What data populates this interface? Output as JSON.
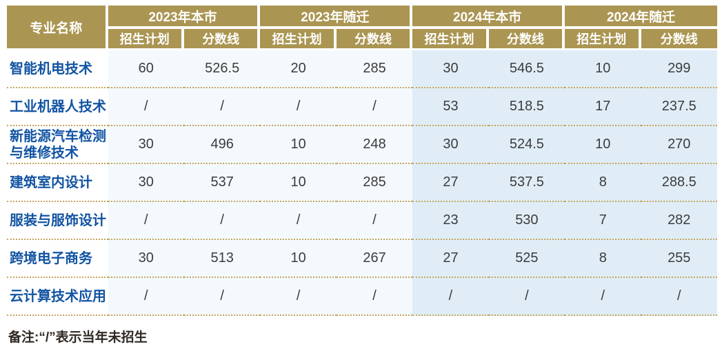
{
  "colors": {
    "header_gold": "#AB9552",
    "major_label_blue": "#1254A3",
    "bg_2023_columns": "#F4F9FD",
    "bg_2024_columns": "#E0EDF7",
    "dotted_separator": "#C5A55C",
    "value_text": "#3C3C3C",
    "header_text": "#FFFFFF"
  },
  "table": {
    "header": {
      "major_label": "专业名称",
      "groups": [
        {
          "label": "2023年本市",
          "cols": [
            "招生计划",
            "分数线"
          ]
        },
        {
          "label": "2023年随迁",
          "cols": [
            "招生计划",
            "分数线"
          ]
        },
        {
          "label": "2024年本市",
          "cols": [
            "招生计划",
            "分数线"
          ]
        },
        {
          "label": "2024年随迁",
          "cols": [
            "招生计划",
            "分数线"
          ]
        }
      ]
    },
    "rows": [
      {
        "major": "智能机电技术",
        "values": [
          "60",
          "526.5",
          "20",
          "285",
          "30",
          "546.5",
          "10",
          "299"
        ]
      },
      {
        "major": "工业机器人技术",
        "values": [
          "/",
          "/",
          "/",
          "/",
          "53",
          "518.5",
          "17",
          "237.5"
        ]
      },
      {
        "major": "新能源汽车检测\n与维修技术",
        "values": [
          "30",
          "496",
          "10",
          "248",
          "30",
          "524.5",
          "10",
          "270"
        ]
      },
      {
        "major": "建筑室内设计",
        "values": [
          "30",
          "537",
          "10",
          "285",
          "27",
          "537.5",
          "8",
          "288.5"
        ]
      },
      {
        "major": "服装与服饰设计",
        "values": [
          "/",
          "/",
          "/",
          "/",
          "23",
          "530",
          "7",
          "282"
        ]
      },
      {
        "major": "跨境电子商务",
        "values": [
          "30",
          "513",
          "10",
          "267",
          "27",
          "525",
          "8",
          "255"
        ]
      },
      {
        "major": "云计算技术应用",
        "values": [
          "/",
          "/",
          "/",
          "/",
          "/",
          "/",
          "/",
          "/"
        ]
      }
    ],
    "note": "备注:“/”表示当年未招生"
  },
  "chart_data": {
    "type": "table",
    "title": "",
    "columns": [
      "专业名称",
      "2023年本市 招生计划",
      "2023年本市 分数线",
      "2023年随迁 招生计划",
      "2023年随迁 分数线",
      "2024年本市 招生计划",
      "2024年本市 分数线",
      "2024年随迁 招生计划",
      "2024年随迁 分数线"
    ],
    "rows": [
      [
        "智能机电技术",
        60,
        526.5,
        20,
        285,
        30,
        546.5,
        10,
        299
      ],
      [
        "工业机器人技术",
        "/",
        "/",
        "/",
        "/",
        53,
        518.5,
        17,
        237.5
      ],
      [
        "新能源汽车检测与维修技术",
        30,
        496,
        10,
        248,
        30,
        524.5,
        10,
        270
      ],
      [
        "建筑室内设计",
        30,
        537,
        10,
        285,
        27,
        537.5,
        8,
        288.5
      ],
      [
        "服装与服饰设计",
        "/",
        "/",
        "/",
        "/",
        23,
        530,
        7,
        282
      ],
      [
        "跨境电子商务",
        30,
        513,
        10,
        267,
        27,
        525,
        8,
        255
      ],
      [
        "云计算技术应用",
        "/",
        "/",
        "/",
        "/",
        "/",
        "/",
        "/",
        "/"
      ]
    ],
    "footnote": "备注:“/”表示当年未招生"
  }
}
